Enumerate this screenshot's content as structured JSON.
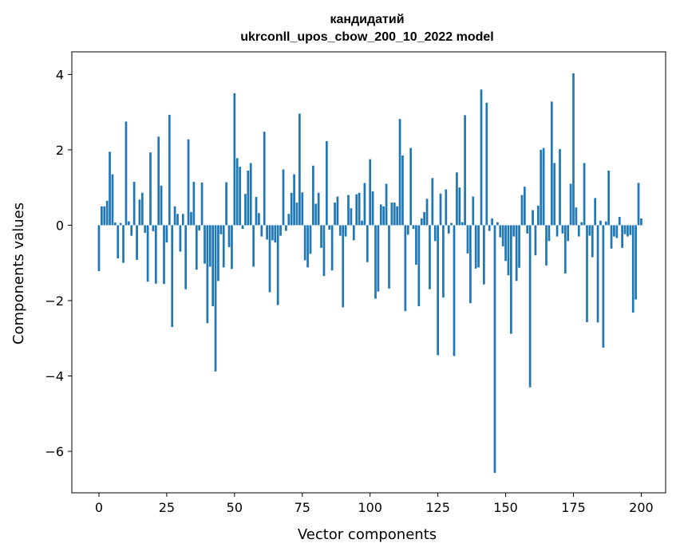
{
  "chart_data": {
    "type": "bar",
    "title_line1": "кандидатий",
    "title_line2": "ukrconll_upos_cbow_200_10_2022 model",
    "xlabel": "Vector components",
    "ylabel": "Components values",
    "xlim": [
      -10,
      209
    ],
    "ylim": [
      -7.1,
      4.6
    ],
    "xticks": [
      0,
      25,
      50,
      75,
      100,
      125,
      150,
      175,
      200
    ],
    "yticks": [
      4,
      2,
      0,
      -2,
      -4,
      -6
    ],
    "ytick_labels": [
      "4",
      "2",
      "0",
      "−2",
      "−4",
      "−6"
    ],
    "bar_color": "#1f77b4",
    "values": [
      -1.22,
      0.5,
      0.5,
      0.65,
      1.95,
      1.35,
      0.07,
      -0.88,
      0.06,
      -1.0,
      2.75,
      0.1,
      -0.28,
      1.15,
      -0.92,
      0.68,
      0.86,
      -0.2,
      -1.5,
      1.93,
      -0.16,
      -1.55,
      2.35,
      1.05,
      -1.56,
      -0.46,
      2.93,
      -2.7,
      0.5,
      0.3,
      -0.7,
      0.3,
      -1.7,
      2.28,
      0.35,
      1.15,
      -1.18,
      -0.14,
      1.13,
      -1.02,
      -2.6,
      -1.1,
      -2.15,
      -3.88,
      -1.48,
      -0.24,
      -1.12,
      1.14,
      -0.58,
      -1.16,
      3.5,
      1.78,
      1.55,
      -0.1,
      0.83,
      1.45,
      1.65,
      -1.1,
      0.75,
      0.32,
      -0.3,
      2.48,
      -0.38,
      -1.78,
      -0.4,
      -0.46,
      -2.12,
      -0.28,
      1.48,
      -0.15,
      0.3,
      0.86,
      1.35,
      0.6,
      2.96,
      0.87,
      -0.93,
      -1.12,
      -0.76,
      1.58,
      0.57,
      0.86,
      -0.6,
      -1.35,
      2.23,
      -0.12,
      -1.2,
      0.6,
      0.76,
      -0.28,
      -2.18,
      -0.3,
      0.8,
      0.45,
      -0.4,
      0.82,
      0.86,
      0.12,
      1.12,
      -0.98,
      1.75,
      0.9,
      -1.95,
      -1.76,
      0.55,
      0.5,
      1.1,
      -1.68,
      0.6,
      0.6,
      0.5,
      2.82,
      1.85,
      -2.28,
      -0.25,
      2.05,
      -0.1,
      -1.05,
      -2.15,
      0.18,
      0.35,
      0.7,
      -1.7,
      1.25,
      -0.42,
      -3.45,
      0.84,
      -1.92,
      0.95,
      -0.22,
      0.06,
      -3.47,
      1.4,
      1.0,
      0.08,
      2.92,
      -0.75,
      -2.07,
      0.76,
      -1.15,
      -1.12,
      3.6,
      -1.57,
      3.25,
      -0.15,
      0.18,
      -6.57,
      0.08,
      -0.32,
      -0.56,
      -0.95,
      -1.33,
      -2.88,
      -0.3,
      -1.48,
      -1.13,
      0.8,
      1.02,
      -0.22,
      -4.3,
      0.4,
      -0.8,
      0.52,
      2.0,
      2.05,
      -1.07,
      -0.42,
      3.28,
      1.65,
      -0.3,
      2.02,
      -0.22,
      -1.28,
      -0.42,
      1.1,
      4.03,
      0.47,
      -0.3,
      0.08,
      1.65,
      -2.57,
      -0.28,
      -0.85,
      0.72,
      -2.58,
      0.12,
      -3.25,
      0.1,
      1.45,
      -0.62,
      -0.3,
      -0.34,
      0.22,
      -0.6,
      -0.24,
      -0.3,
      -0.26,
      -2.32,
      -1.97,
      1.12,
      0.18
    ]
  }
}
